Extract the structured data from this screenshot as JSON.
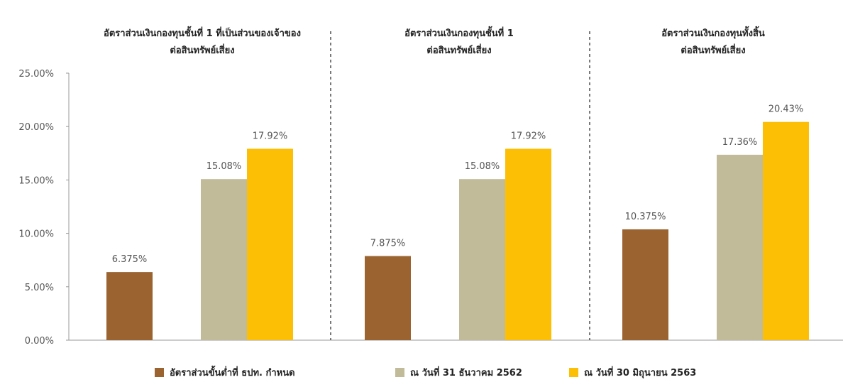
{
  "chart_data": {
    "type": "bar",
    "ylim": [
      0,
      25
    ],
    "yticks": [
      "0.00%",
      "5.00%",
      "10.00%",
      "15.00%",
      "20.00%",
      "25.00%"
    ],
    "grid": false,
    "legend_position": "bottom",
    "groups": [
      {
        "title_line1": "อัตราส่วนเงินกองทุนชั้นที่ 1 ที่เป็นส่วนของเจ้าของ",
        "title_line2": "ต่อสินทรัพย์เสี่ยง",
        "values": [
          6.375,
          15.08,
          17.92
        ],
        "labels": [
          "6.375%",
          "15.08%",
          "17.92%"
        ]
      },
      {
        "title_line1": "อัตราส่วนเงินกองทุนชั้นที่ 1",
        "title_line2": "ต่อสินทรัพย์เสี่ยง",
        "values": [
          7.875,
          15.08,
          17.92
        ],
        "labels": [
          "7.875%",
          "15.08%",
          "17.92%"
        ]
      },
      {
        "title_line1": "อัตราส่วนเงินกองทุนทั้งสิ้น",
        "title_line2": "ต่อสินทรัพย์เสี่ยง",
        "values": [
          10.375,
          17.36,
          20.43
        ],
        "labels": [
          "10.375%",
          "17.36%",
          "20.43%"
        ]
      }
    ],
    "series": [
      {
        "name": "อัตราส่วนขั้นต่ำที่ ธปท. กำหนด",
        "color": "#9b6330"
      },
      {
        "name": "ณ วันที่ 31 ธันวาคม 2562",
        "color": "#c2bb99"
      },
      {
        "name": "ณ วันที่ 30 มิถุนายน 2563",
        "color": "#fcbf05"
      }
    ]
  }
}
